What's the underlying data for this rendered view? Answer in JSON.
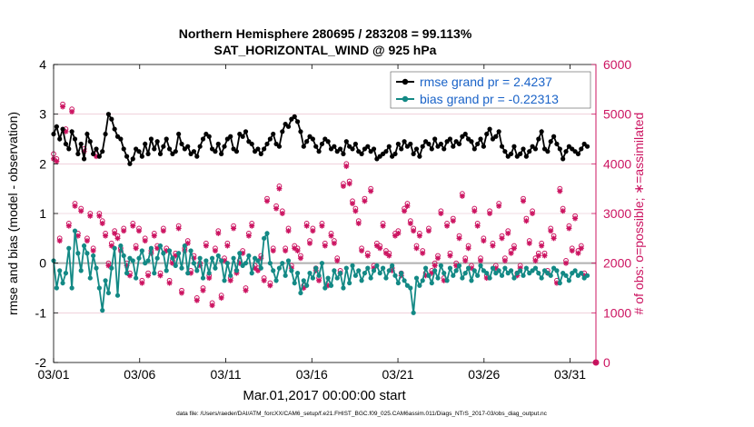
{
  "chart_data": {
    "type": "line",
    "title_line1": "Northern Hemisphere 280695 / 283208 = 99.113%",
    "title_line2": "SAT_HORIZONTAL_WIND @ 925 hPa",
    "xlabel": "Mar.01,2017 00:00:00 start",
    "ylabel_left": "rmse and bias (model - observation)",
    "ylabel_right": "# of obs: o=possible; ∗=assimilated",
    "footnote": "data file: /Users/raeder/DAI/ATM_forcXX/CAM6_setup/f.e21.FHIST_BGC.f09_025.CAM6assim.011/Diags_NTrS_2017-03/obs_diag_output.nc",
    "xlim": [
      0,
      31.5
    ],
    "x_ticks": [
      0,
      5,
      10,
      15,
      20,
      25,
      30
    ],
    "x_tick_labels": [
      "03/01",
      "03/06",
      "03/11",
      "03/16",
      "03/21",
      "03/26",
      "03/31"
    ],
    "ylim_left": [
      -2,
      4
    ],
    "y_ticks_left": [
      -2,
      -1,
      0,
      1,
      2,
      3,
      4
    ],
    "y_tick_labels_left": [
      "-2",
      "-1",
      "0",
      "1",
      "2",
      "3",
      "4"
    ],
    "ylim_right": [
      0,
      6000
    ],
    "y_ticks_right": [
      0,
      1000,
      2000,
      3000,
      4000,
      5000,
      6000
    ],
    "y_tick_labels_right": [
      "0",
      "1000",
      "2000",
      "3000",
      "4000",
      "5000",
      "6000"
    ],
    "colors": {
      "rmse": "#000000",
      "bias": "#138985",
      "obs": "#cc1461",
      "zero_line": "#b0b0b0",
      "grid": "#e6b8c8",
      "right_axis": "#cc1461"
    },
    "legend": [
      {
        "name": "rmse",
        "label": "rmse grand pr = 2.4237"
      },
      {
        "name": "bias",
        "label": "bias grand pr = -0.22313"
      }
    ],
    "series": [
      {
        "name": "rmse",
        "axis": "left",
        "values": [
          2.6,
          2.75,
          2.5,
          2.7,
          2.4,
          2.3,
          2.65,
          2.5,
          2.2,
          2.4,
          2.1,
          2.6,
          2.45,
          2.2,
          2.3,
          2.15,
          2.25,
          2.6,
          3.0,
          2.9,
          2.7,
          2.55,
          2.5,
          2.3,
          2.15,
          2.0,
          2.1,
          2.3,
          2.25,
          2.15,
          2.4,
          2.2,
          2.5,
          2.3,
          2.45,
          2.2,
          2.35,
          2.5,
          2.3,
          2.2,
          2.25,
          2.6,
          2.4,
          2.3,
          2.35,
          2.2,
          2.25,
          2.15,
          2.35,
          2.5,
          2.6,
          2.55,
          2.3,
          2.25,
          2.4,
          2.2,
          2.35,
          2.5,
          2.55,
          2.3,
          2.25,
          2.6,
          2.55,
          2.65,
          2.45,
          2.4,
          2.25,
          2.3,
          2.2,
          2.3,
          2.4,
          2.5,
          2.6,
          2.4,
          2.35,
          2.65,
          2.8,
          2.75,
          2.9,
          2.95,
          2.85,
          2.65,
          2.35,
          2.45,
          2.55,
          2.5,
          2.35,
          2.25,
          2.4,
          2.5,
          2.45,
          2.3,
          2.35,
          2.25,
          2.3,
          2.2,
          2.45,
          2.35,
          2.3,
          2.4,
          2.25,
          2.2,
          2.3,
          2.35,
          2.25,
          2.3,
          2.1,
          2.15,
          2.2,
          2.25,
          2.35,
          2.15,
          2.2,
          2.4,
          2.3,
          2.45,
          2.35,
          2.4,
          2.2,
          2.3,
          2.15,
          2.35,
          2.45,
          2.4,
          2.3,
          2.5,
          2.35,
          2.4,
          2.3,
          2.45,
          2.5,
          2.35,
          2.45,
          2.4,
          2.55,
          2.6,
          2.5,
          2.45,
          2.3,
          2.4,
          2.5,
          2.35,
          2.6,
          2.7,
          2.5,
          2.55,
          2.65,
          2.35,
          2.25,
          2.15,
          2.2,
          2.35,
          2.15,
          2.2,
          2.3,
          2.15,
          2.25,
          2.35,
          2.3,
          2.5,
          2.65,
          2.3,
          2.25,
          2.45,
          2.55,
          2.4,
          2.3,
          2.1,
          2.25,
          2.35,
          2.3,
          2.25,
          2.2,
          2.3,
          2.4,
          2.35
        ]
      },
      {
        "name": "bias",
        "axis": "left",
        "values": [
          0.05,
          -0.5,
          -0.15,
          -0.4,
          -0.2,
          0.3,
          -0.5,
          0.65,
          0.2,
          -0.15,
          0.35,
          0.2,
          -0.3,
          0.15,
          -0.1,
          -0.5,
          -0.95,
          -0.35,
          -0.6,
          -0.1,
          0.3,
          -0.65,
          0.35,
          0.15,
          -0.2,
          0.1,
          0.05,
          -0.3,
          0.1,
          0.25,
          0.0,
          0.05,
          0.3,
          -0.2,
          0.1,
          0.35,
          0.2,
          -0.15,
          0.25,
          0.1,
          -0.05,
          0.2,
          -0.1,
          0.35,
          -0.2,
          0.25,
          0.0,
          -0.15,
          0.1,
          -0.3,
          0.05,
          -0.2,
          0.1,
          -0.1,
          0.15,
          0.05,
          -0.35,
          0.0,
          -0.25,
          0.1,
          -0.15,
          0.2,
          -0.05,
          0.0,
          0.15,
          -0.2,
          0.1,
          0.05,
          -0.1,
          0.5,
          0.6,
          0.0,
          -0.15,
          -0.35,
          -0.1,
          0.0,
          -0.25,
          0.05,
          -0.15,
          -0.4,
          -0.2,
          -0.6,
          -0.35,
          -0.45,
          -0.2,
          -0.3,
          -0.1,
          -0.25,
          0.0,
          -0.5,
          -0.3,
          -0.45,
          -0.15,
          -0.3,
          -0.2,
          -0.5,
          -0.1,
          -0.4,
          -0.05,
          -0.25,
          -0.15,
          -0.35,
          -0.2,
          -0.1,
          -0.3,
          -0.15,
          -0.05,
          -0.2,
          -0.1,
          -0.3,
          -0.15,
          -0.05,
          -0.25,
          -0.4,
          -0.2,
          -0.35,
          -0.45,
          -0.5,
          -1.0,
          -0.3,
          -0.45,
          -0.35,
          -0.1,
          -0.25,
          -0.4,
          -0.15,
          -0.3,
          -0.05,
          -0.2,
          -0.35,
          -0.1,
          -0.25,
          -0.15,
          -0.05,
          -0.3,
          -0.2,
          -0.1,
          -0.35,
          -0.15,
          -0.25,
          -0.05,
          -0.15,
          -0.2,
          -0.3,
          -0.1,
          -0.2,
          -0.15,
          -0.25,
          -0.1,
          -0.2,
          -0.15,
          -0.3,
          -0.2,
          -0.15,
          -0.25,
          -0.1,
          -0.2,
          -0.15,
          -0.1,
          -0.2,
          -0.3,
          -0.15,
          -0.2,
          -0.25,
          -0.1,
          -0.15,
          -0.4,
          -0.2,
          -0.25,
          -0.35,
          -0.2,
          -0.15,
          -0.25,
          -0.2,
          -0.3,
          -0.25
        ]
      },
      {
        "name": "obs_possible",
        "axis": "right",
        "values": [
          4200,
          4100,
          2500,
          5200,
          4700,
          2800,
          5100,
          3200,
          2600,
          3100,
          4300,
          2500,
          3000,
          2300,
          4200,
          3000,
          2850,
          2600,
          2000,
          2400,
          2650,
          2550,
          2300,
          2700,
          2000,
          1800,
          2800,
          2350,
          2700,
          1650,
          2500,
          1800,
          2250,
          2600,
          2350,
          1800,
          2700,
          2300,
          1650,
          2050,
          2200,
          2750,
          1450,
          2300,
          2450,
          1850,
          2150,
          1300,
          2000,
          1500,
          2400,
          1750,
          1200,
          2300,
          2650,
          1350,
          2100,
          2400,
          1700,
          2750,
          1850,
          2050,
          2250,
          1500,
          2600,
          2800,
          1950,
          1900,
          2150,
          1700,
          3300,
          1600,
          2300,
          3150,
          3550,
          3050,
          2300,
          2700,
          1950,
          2350,
          2300,
          2150,
          1550,
          2800,
          2450,
          2700,
          1900,
          1700,
          2800,
          2400,
          1600,
          2600,
          2450,
          2100,
          1850,
          3600,
          4000,
          3650,
          3250,
          3100,
          2850,
          2300,
          3300,
          2200,
          3500,
          1950,
          2400,
          2350,
          2800,
          2250,
          2200,
          1900,
          2600,
          2650,
          1800,
          3100,
          3200,
          2850,
          2700,
          2350,
          2600,
          2250,
          1800,
          2700,
          1850,
          2000,
          2150,
          3050,
          1700,
          2800,
          2200,
          2900,
          2000,
          2550,
          3400,
          2100,
          2350,
          1950,
          3100,
          2800,
          2100,
          2500,
          1750,
          3050,
          2400,
          1950,
          3200,
          2550,
          2100,
          2650,
          2250,
          2350,
          1800,
          1950,
          3300,
          2900,
          2450,
          3050,
          2100,
          2200,
          2400,
          2200,
          1850,
          2700,
          2550,
          1650,
          3500,
          3100,
          2050,
          2750,
          2300,
          2950,
          2250,
          2350,
          1800
        ]
      },
      {
        "name": "obs_assimilated",
        "axis": "right",
        "values": [
          4100,
          4050,
          2450,
          5150,
          4650,
          2750,
          5050,
          3150,
          2550,
          3050,
          4250,
          2450,
          2950,
          2250,
          4150,
          2950,
          2800,
          2550,
          1950,
          2350,
          2600,
          2500,
          2250,
          2650,
          1950,
          1750,
          2750,
          2300,
          2650,
          1600,
          2450,
          1750,
          2200,
          2550,
          2300,
          1750,
          2650,
          2250,
          1600,
          2000,
          2150,
          2700,
          1400,
          2250,
          2400,
          1800,
          2100,
          1250,
          1950,
          1450,
          2350,
          1700,
          1150,
          2250,
          2600,
          1300,
          2050,
          2350,
          1650,
          2700,
          1800,
          2000,
          2200,
          1450,
          2550,
          2750,
          1900,
          1850,
          2100,
          1650,
          3250,
          1550,
          2250,
          3100,
          3500,
          3000,
          2250,
          2650,
          1900,
          2300,
          2250,
          2100,
          1500,
          2750,
          2400,
          2650,
          1850,
          1650,
          2750,
          2350,
          1550,
          2550,
          2400,
          2050,
          1800,
          3550,
          3950,
          3600,
          3200,
          3050,
          2800,
          2250,
          3250,
          2150,
          3450,
          1900,
          2350,
          2300,
          2750,
          2200,
          2150,
          1850,
          2550,
          2600,
          1750,
          3050,
          3150,
          2800,
          2650,
          2300,
          2550,
          2200,
          1750,
          2650,
          1800,
          1950,
          2100,
          3000,
          1650,
          2750,
          2150,
          2850,
          1950,
          2500,
          3350,
          2050,
          2300,
          1900,
          3050,
          2750,
          2050,
          2450,
          1700,
          3000,
          2350,
          1900,
          3150,
          2500,
          2050,
          2600,
          2200,
          2300,
          1750,
          1900,
          3250,
          2850,
          2400,
          3000,
          2050,
          2150,
          2350,
          2150,
          1800,
          2650,
          2500,
          1600,
          3450,
          3050,
          2000,
          2700,
          2250,
          2900,
          2200,
          2300,
          1750
        ]
      }
    ]
  }
}
